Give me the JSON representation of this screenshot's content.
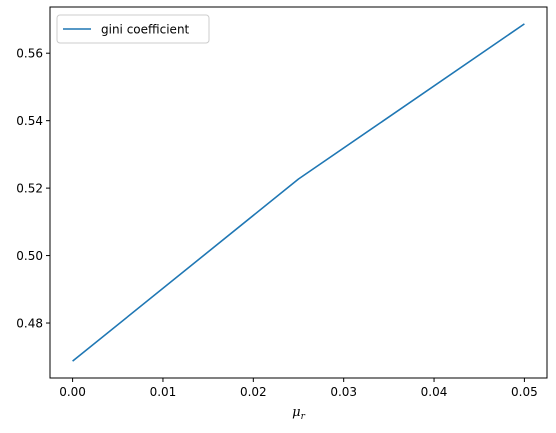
{
  "chart_data": {
    "type": "line",
    "title": "",
    "xlabel": "μ",
    "xlabel_subscript": "r",
    "ylabel": "",
    "xlim": [
      -0.0025,
      0.0525
    ],
    "ylim": [
      0.4637,
      0.5737
    ],
    "xticks": [
      0.0,
      0.01,
      0.02,
      0.03,
      0.04,
      0.05
    ],
    "xtick_labels": [
      "0.00",
      "0.01",
      "0.02",
      "0.03",
      "0.04",
      "0.05"
    ],
    "yticks": [
      0.48,
      0.5,
      0.52,
      0.54,
      0.56
    ],
    "ytick_labels": [
      "0.48",
      "0.50",
      "0.52",
      "0.54",
      "0.56"
    ],
    "grid": false,
    "legend_position": "top-left",
    "series": [
      {
        "name": "gini coefficient",
        "color": "#1f77b4",
        "x": [
          0.0,
          0.025,
          0.05
        ],
        "y": [
          0.4687,
          0.5227,
          0.5687
        ]
      }
    ]
  }
}
